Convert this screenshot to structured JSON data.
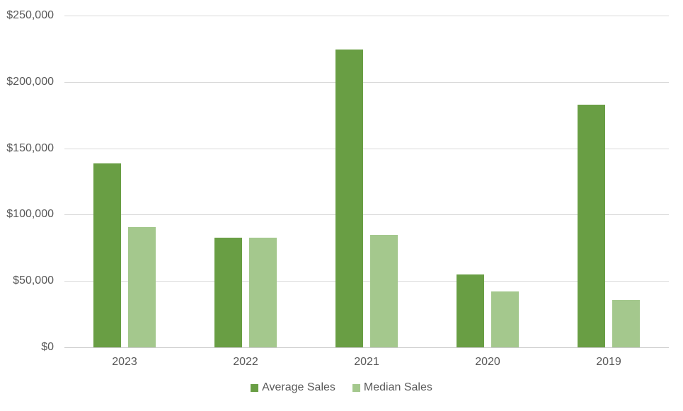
{
  "chart_data": {
    "type": "bar",
    "title": "",
    "categories": [
      "2023",
      "2022",
      "2021",
      "2020",
      "2019"
    ],
    "series": [
      {
        "name": "Average Sales",
        "color": "#699E44",
        "values": [
          138500,
          82500,
          224500,
          55000,
          182800
        ]
      },
      {
        "name": "Median Sales",
        "color": "#A4C88D",
        "values": [
          90500,
          82500,
          85000,
          42000,
          35500
        ]
      }
    ],
    "xlabel": "",
    "ylabel": "",
    "ylim": [
      0,
      250000
    ],
    "ytick_values": [
      0,
      50000,
      100000,
      150000,
      200000,
      250000
    ],
    "ytick_labels": [
      "$0",
      "$50,000",
      "$100,000",
      "$150,000",
      "$200,000",
      "$250,000"
    ],
    "grid": true,
    "legend_position": "bottom",
    "colors": {
      "text": "#595959",
      "gridline": "#D9D9D9",
      "axis": "#CBCBCB",
      "background": "#FFFFFF"
    }
  }
}
